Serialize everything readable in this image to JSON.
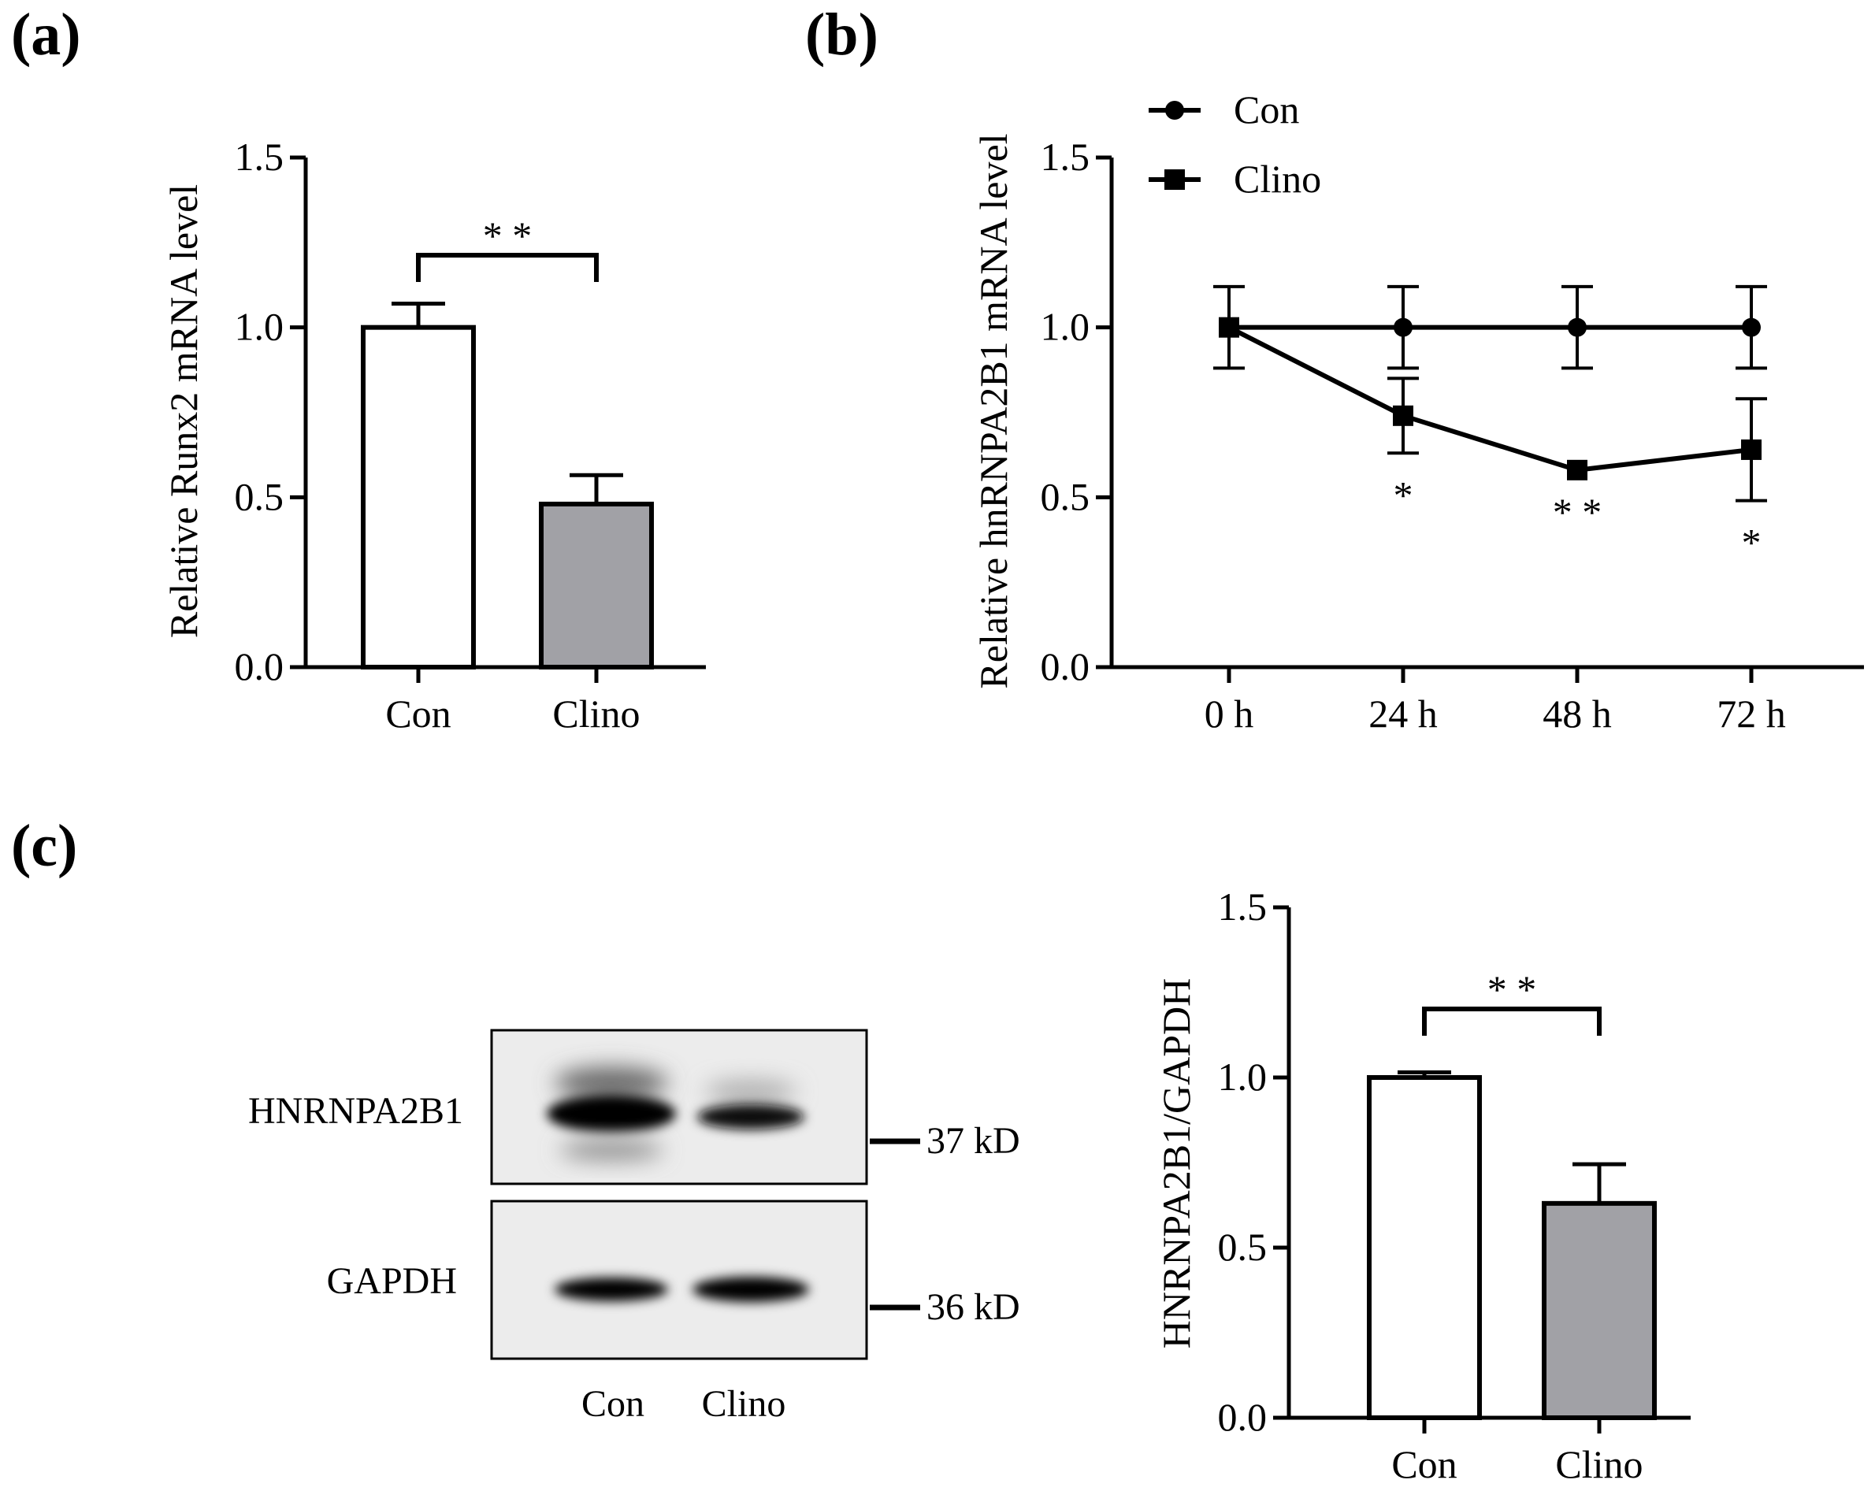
{
  "panels": {
    "a": "(a)",
    "b": "(b)",
    "c": "(c)"
  },
  "colors": {
    "con_fill": "#ffffff",
    "clino_fill": "#a1a1a6",
    "ink": "#000000"
  },
  "chart_data": [
    {
      "id": "a",
      "type": "bar",
      "title": "",
      "xlabel": "",
      "ylabel": "Relative Runx2 mRNA level",
      "ylim": [
        0,
        1.5
      ],
      "yticks": [
        0.0,
        0.5,
        1.0,
        1.5
      ],
      "ytick_labels": [
        "0.0",
        "0.5",
        "1.0",
        "1.5"
      ],
      "categories": [
        "Con",
        "Clino"
      ],
      "values": [
        1.0,
        0.48
      ],
      "errors": [
        0.07,
        0.085
      ],
      "significance": {
        "label": "* *",
        "between": [
          "Con",
          "Clino"
        ]
      }
    },
    {
      "id": "b",
      "type": "line",
      "title": "",
      "xlabel": "",
      "ylabel": "Relative hnRNPA2B1 mRNA level",
      "ylim": [
        0,
        1.5
      ],
      "yticks": [
        0.0,
        0.5,
        1.0,
        1.5
      ],
      "ytick_labels": [
        "0.0",
        "0.5",
        "1.0",
        "1.5"
      ],
      "categories": [
        "0 h",
        "24 h",
        "48 h",
        "72 h"
      ],
      "series": [
        {
          "name": "Con",
          "marker": "circle",
          "values": [
            1.0,
            1.0,
            1.0,
            1.0
          ],
          "errors": [
            0.12,
            0.12,
            0.12,
            0.12
          ]
        },
        {
          "name": "Clino",
          "marker": "square",
          "values": [
            1.0,
            0.74,
            0.58,
            0.64
          ],
          "errors": [
            0.0,
            0.11,
            0.0,
            0.15
          ]
        }
      ],
      "significance": [
        "",
        "*",
        "* *",
        "*"
      ],
      "legend_position": "top-left"
    },
    {
      "id": "c",
      "type": "bar",
      "title": "",
      "xlabel": "",
      "ylabel": "HNRNPA2B1/GAPDH",
      "ylim": [
        0,
        1.5
      ],
      "yticks": [
        0.0,
        0.5,
        1.0,
        1.5
      ],
      "ytick_labels": [
        "0.0",
        "0.5",
        "1.0",
        "1.5"
      ],
      "categories": [
        "Con",
        "Clino"
      ],
      "values": [
        1.0,
        0.63
      ],
      "errors": [
        0.015,
        0.115
      ],
      "significance": {
        "label": "* *",
        "between": [
          "Con",
          "Clino"
        ]
      }
    }
  ],
  "blot": {
    "rows": [
      {
        "protein": "HNRNPA2B1",
        "marker": "37 kD"
      },
      {
        "protein": "GAPDH",
        "marker": "36 kD"
      }
    ],
    "lanes": [
      "Con",
      "Clino"
    ]
  }
}
